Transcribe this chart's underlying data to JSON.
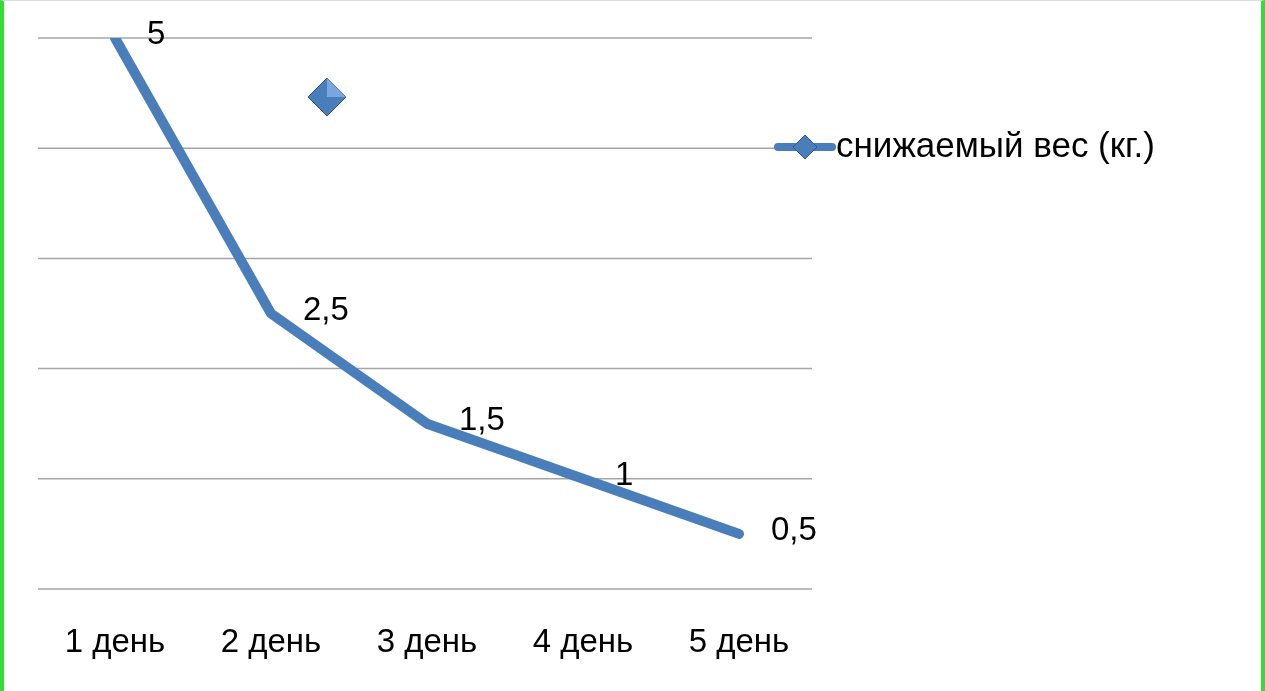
{
  "chart_data": {
    "type": "line",
    "categories": [
      "1 день",
      "2 день",
      "3 день",
      "4 день",
      "5 день"
    ],
    "series": [
      {
        "name": "снижаемый вес (кг.)",
        "color": "#4a7ebb",
        "values": [
          5,
          2.5,
          1.5,
          1,
          0.5
        ],
        "value_labels": [
          "5",
          "2,5",
          "1,5",
          "1",
          "0,5"
        ]
      }
    ],
    "tick_labels": "x",
    "grid": "y",
    "legend": "right",
    "marker": "none",
    "line_style": "solid"
  }
}
